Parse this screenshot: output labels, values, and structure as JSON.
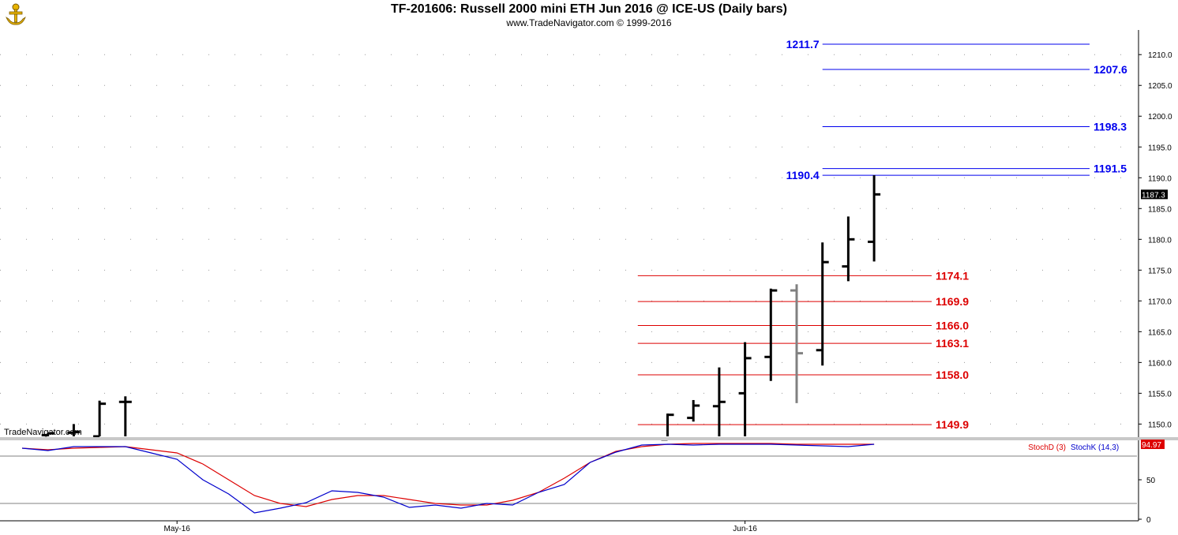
{
  "header": {
    "title": "TF-201606:  Russell 2000 mini ETH Jun 2016 @ ICE-US  (Daily bars)",
    "subtitle": "www.TradeNavigator.com © 1999-2016",
    "watermark": "TradeNavigator.com",
    "logo_icon": "tradenavigator-anchor-icon"
  },
  "colors": {
    "up_bar": "#000000",
    "down_bar": "#808080",
    "blue_level": "#0000ee",
    "red_level": "#dd0000",
    "stoch_d": "#dd0000",
    "stoch_k": "#0000cc",
    "last_price_bg": "#000000",
    "stoch_value_bg": "#dd0000"
  },
  "chart_data": [
    {
      "type": "ohlc",
      "title": "TF-201606:  Russell 2000 mini ETH Jun 2016 @ ICE-US  (Daily bars)",
      "ylim": [
        1148,
        1214
      ],
      "yticks": [
        "1150.0",
        "1155.0",
        "1160.0",
        "1165.0",
        "1170.0",
        "1175.0",
        "1180.0",
        "1185.0",
        "1190.0",
        "1195.0",
        "1200.0",
        "1205.0",
        "1210.0"
      ],
      "xticks": [
        {
          "label": "May-16",
          "index": 6
        },
        {
          "label": "Jun-16",
          "index": 28
        }
      ],
      "last_price": "1187.3",
      "grid": true,
      "bars": [
        {
          "i": 1,
          "o": 1148.2,
          "h": 1148.5,
          "l": 1147.5,
          "c": 1148.5
        },
        {
          "i": 2,
          "o": 1148.6,
          "h": 1150.0,
          "l": 1147.5,
          "c": 1148.7
        },
        {
          "i": 3,
          "o": 1148.0,
          "h": 1153.8,
          "l": 1147.5,
          "c": 1153.3
        },
        {
          "i": 4,
          "o": 1153.6,
          "h": 1154.5,
          "l": 1147.5,
          "c": 1153.6
        },
        {
          "i": 25,
          "o": 1147.5,
          "h": 1151.7,
          "l": 1147.5,
          "c": 1151.5
        },
        {
          "i": 26,
          "o": 1151.0,
          "h": 1153.9,
          "l": 1150.4,
          "c": 1153.0
        },
        {
          "i": 27,
          "o": 1152.9,
          "h": 1159.2,
          "l": 1147.5,
          "c": 1153.6
        },
        {
          "i": 28,
          "o": 1155.0,
          "h": 1163.3,
          "l": 1147.5,
          "c": 1160.7
        },
        {
          "i": 29,
          "o": 1160.9,
          "h": 1172.0,
          "l": 1157.0,
          "c": 1171.7
        },
        {
          "i": 30,
          "o": 1171.7,
          "h": 1172.7,
          "l": 1153.4,
          "c": 1161.5
        },
        {
          "i": 31,
          "o": 1162.0,
          "h": 1179.5,
          "l": 1159.5,
          "c": 1176.3
        },
        {
          "i": 32,
          "o": 1175.6,
          "h": 1183.7,
          "l": 1173.2,
          "c": 1180.0
        },
        {
          "i": 33,
          "o": 1179.6,
          "h": 1190.4,
          "l": 1176.4,
          "c": 1187.3
        }
      ],
      "levels": [
        {
          "value": 1211.7,
          "label": "1211.7",
          "color": "blue",
          "from": 31,
          "to": 41,
          "label_side": "left"
        },
        {
          "value": 1207.6,
          "label": "1207.6",
          "color": "blue",
          "from": 31,
          "to": 41,
          "label_side": "right"
        },
        {
          "value": 1198.3,
          "label": "1198.3",
          "color": "blue",
          "from": 31,
          "to": 41,
          "label_side": "right"
        },
        {
          "value": 1191.5,
          "label": "1191.5",
          "color": "blue",
          "from": 31,
          "to": 41,
          "label_side": "right"
        },
        {
          "value": 1190.4,
          "label": "1190.4",
          "color": "blue",
          "from": 31,
          "to": 41,
          "label_side": "left"
        },
        {
          "value": 1174.1,
          "label": "1174.1",
          "color": "red",
          "from": 24,
          "to": 35,
          "label_side": "right"
        },
        {
          "value": 1169.9,
          "label": "1169.9",
          "color": "red",
          "from": 24,
          "to": 35,
          "label_side": "right"
        },
        {
          "value": 1166.0,
          "label": "1166.0",
          "color": "red",
          "from": 24,
          "to": 35,
          "label_side": "right"
        },
        {
          "value": 1163.1,
          "label": "1163.1",
          "color": "red",
          "from": 24,
          "to": 35,
          "label_side": "right"
        },
        {
          "value": 1158.0,
          "label": "1158.0",
          "color": "red",
          "from": 24,
          "to": 35,
          "label_side": "right"
        },
        {
          "value": 1149.9,
          "label": "1149.9",
          "color": "red",
          "from": 24,
          "to": 35,
          "label_side": "right"
        }
      ]
    },
    {
      "type": "line",
      "ylim": [
        0,
        100
      ],
      "yticks": [
        "0",
        "50"
      ],
      "reference_lines": [
        80,
        20
      ],
      "legend": [
        "StochD (3)",
        "StochK (14,3)"
      ],
      "legend_placement": "top-right",
      "last_value": "94.97",
      "x": [
        0,
        1,
        2,
        3,
        4,
        5,
        6,
        7,
        8,
        9,
        10,
        11,
        12,
        13,
        14,
        15,
        16,
        17,
        18,
        19,
        20,
        21,
        22,
        23,
        24,
        25,
        26,
        27,
        28,
        29,
        30,
        31,
        32,
        33
      ],
      "series": [
        {
          "name": "StochD (3)",
          "values": [
            90,
            88,
            90,
            91,
            92,
            88,
            84,
            70,
            50,
            30,
            20,
            16,
            25,
            30,
            30,
            25,
            20,
            18,
            18,
            24,
            34,
            52,
            72,
            86,
            92,
            95,
            96,
            96,
            96,
            96,
            95,
            95,
            95,
            95
          ]
        },
        {
          "name": "StochK (14,3)",
          "values": [
            90,
            87,
            92,
            92,
            92,
            84,
            76,
            50,
            32,
            8,
            14,
            21,
            36,
            34,
            28,
            15,
            18,
            14,
            20,
            18,
            34,
            44,
            72,
            85,
            94,
            95,
            94,
            95,
            95,
            95,
            94,
            93,
            92,
            95
          ]
        }
      ]
    }
  ]
}
